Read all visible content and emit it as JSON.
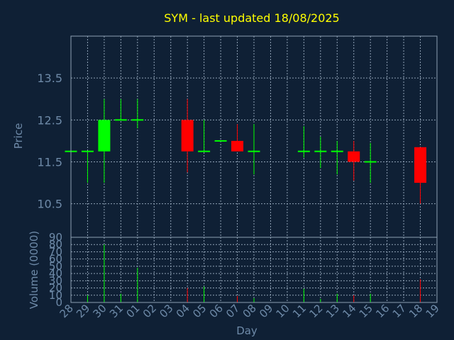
{
  "chart_data": [
    {
      "type": "candlestick",
      "title": "SYM - last updated 18/08/2025",
      "ylabel": "Price",
      "ylim": [
        9.7,
        14.5
      ],
      "yticks": [
        "13.5",
        "12.5",
        "11.5",
        "10.5"
      ],
      "grid": true,
      "colors": {
        "up": "#00ff00",
        "down": "#ff0000",
        "background": "#0f2035",
        "grid": "#8ea0b4",
        "title": "#ffff00",
        "text": "#6e8aa8"
      },
      "x": [
        "28",
        "29",
        "30",
        "31",
        "01",
        "02",
        "03",
        "04",
        "05",
        "06",
        "07",
        "08",
        "09",
        "10",
        "11",
        "12",
        "13",
        "14",
        "15",
        "16",
        "17",
        "18",
        "19"
      ],
      "candles": [
        {
          "day": "28",
          "open": 11.75,
          "high": 11.75,
          "low": 11.75,
          "close": 11.75
        },
        {
          "day": "29",
          "open": 11.75,
          "high": 11.75,
          "low": 11.0,
          "close": 11.75
        },
        {
          "day": "30",
          "open": 11.75,
          "high": 13.0,
          "low": 11.0,
          "close": 12.5
        },
        {
          "day": "31",
          "open": 12.5,
          "high": 13.0,
          "low": 12.5,
          "close": 12.5
        },
        {
          "day": "01",
          "open": 12.5,
          "high": 13.0,
          "low": 12.3,
          "close": 12.5
        },
        {
          "day": "04",
          "open": 12.5,
          "high": 13.0,
          "low": 11.25,
          "close": 11.75
        },
        {
          "day": "05",
          "open": 11.75,
          "high": 12.5,
          "low": 11.75,
          "close": 11.75
        },
        {
          "day": "06",
          "open": 12.0,
          "high": 12.0,
          "low": 12.0,
          "close": 12.0
        },
        {
          "day": "07",
          "open": 12.0,
          "high": 12.4,
          "low": 11.75,
          "close": 11.75
        },
        {
          "day": "08",
          "open": 11.75,
          "high": 12.4,
          "low": 11.2,
          "close": 11.75
        },
        {
          "day": "11",
          "open": 11.75,
          "high": 12.35,
          "low": 11.6,
          "close": 11.75
        },
        {
          "day": "12",
          "open": 11.75,
          "high": 12.1,
          "low": 11.35,
          "close": 11.75
        },
        {
          "day": "13",
          "open": 11.75,
          "high": 12.0,
          "low": 11.2,
          "close": 11.75
        },
        {
          "day": "14",
          "open": 11.75,
          "high": 12.0,
          "low": 11.05,
          "close": 11.5
        },
        {
          "day": "15",
          "open": 11.5,
          "high": 11.95,
          "low": 11.0,
          "close": 11.5
        },
        {
          "day": "18",
          "open": 11.85,
          "high": 11.85,
          "low": 10.5,
          "close": 11.0
        }
      ]
    },
    {
      "type": "bar",
      "ylabel": "Volume (0000)",
      "xlabel": "Day",
      "ylim": [
        0,
        90
      ],
      "yticks": [
        "0",
        "10",
        "20",
        "30",
        "40",
        "50",
        "60",
        "70",
        "80",
        "90"
      ],
      "grid": true,
      "categories": [
        "29",
        "30",
        "31",
        "01",
        "04",
        "05",
        "07",
        "08",
        "11",
        "12",
        "13",
        "14",
        "15",
        "18"
      ],
      "values": [
        10,
        80,
        12,
        48,
        20,
        22,
        9,
        6,
        19,
        5,
        12,
        10,
        12,
        32
      ],
      "bar_colors": [
        "green",
        "green",
        "green",
        "green",
        "red",
        "green",
        "red",
        "green",
        "green",
        "green",
        "green",
        "red",
        "green",
        "red"
      ]
    }
  ]
}
